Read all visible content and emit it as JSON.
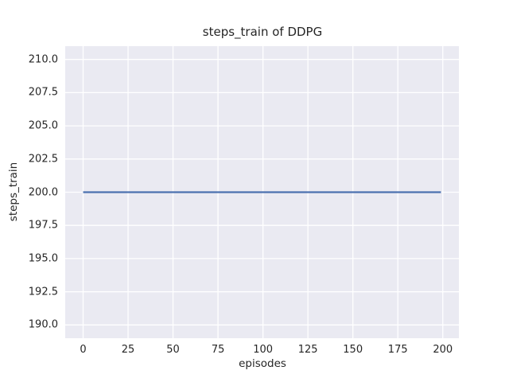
{
  "style": {
    "figure_bg": "#ffffff",
    "plot_bg": "#eaeaf2",
    "grid_color": "#ffffff",
    "text_color": "#262626",
    "line_color": "#4c72b0"
  },
  "chart_data": {
    "type": "line",
    "title": "steps_train of DDPG",
    "xlabel": "episodes",
    "ylabel": "steps_train",
    "xlim": [
      -9.95,
      208.95
    ],
    "ylim": [
      189.0,
      211.0
    ],
    "x_ticks": [
      0,
      25,
      50,
      75,
      100,
      125,
      150,
      175,
      200
    ],
    "x_tick_labels": [
      "0",
      "25",
      "50",
      "75",
      "100",
      "125",
      "150",
      "175",
      "200"
    ],
    "y_ticks": [
      190.0,
      192.5,
      195.0,
      197.5,
      200.0,
      202.5,
      205.0,
      207.5,
      210.0
    ],
    "y_tick_labels": [
      "190.0",
      "192.5",
      "195.0",
      "197.5",
      "200.0",
      "202.5",
      "205.0",
      "207.5",
      "210.0"
    ],
    "grid": true,
    "legend_position": "none",
    "series": [
      {
        "name": "steps_train",
        "color": "#4c72b0",
        "x": [
          0,
          199
        ],
        "y": [
          200,
          200
        ],
        "constant_value": 200
      }
    ]
  }
}
